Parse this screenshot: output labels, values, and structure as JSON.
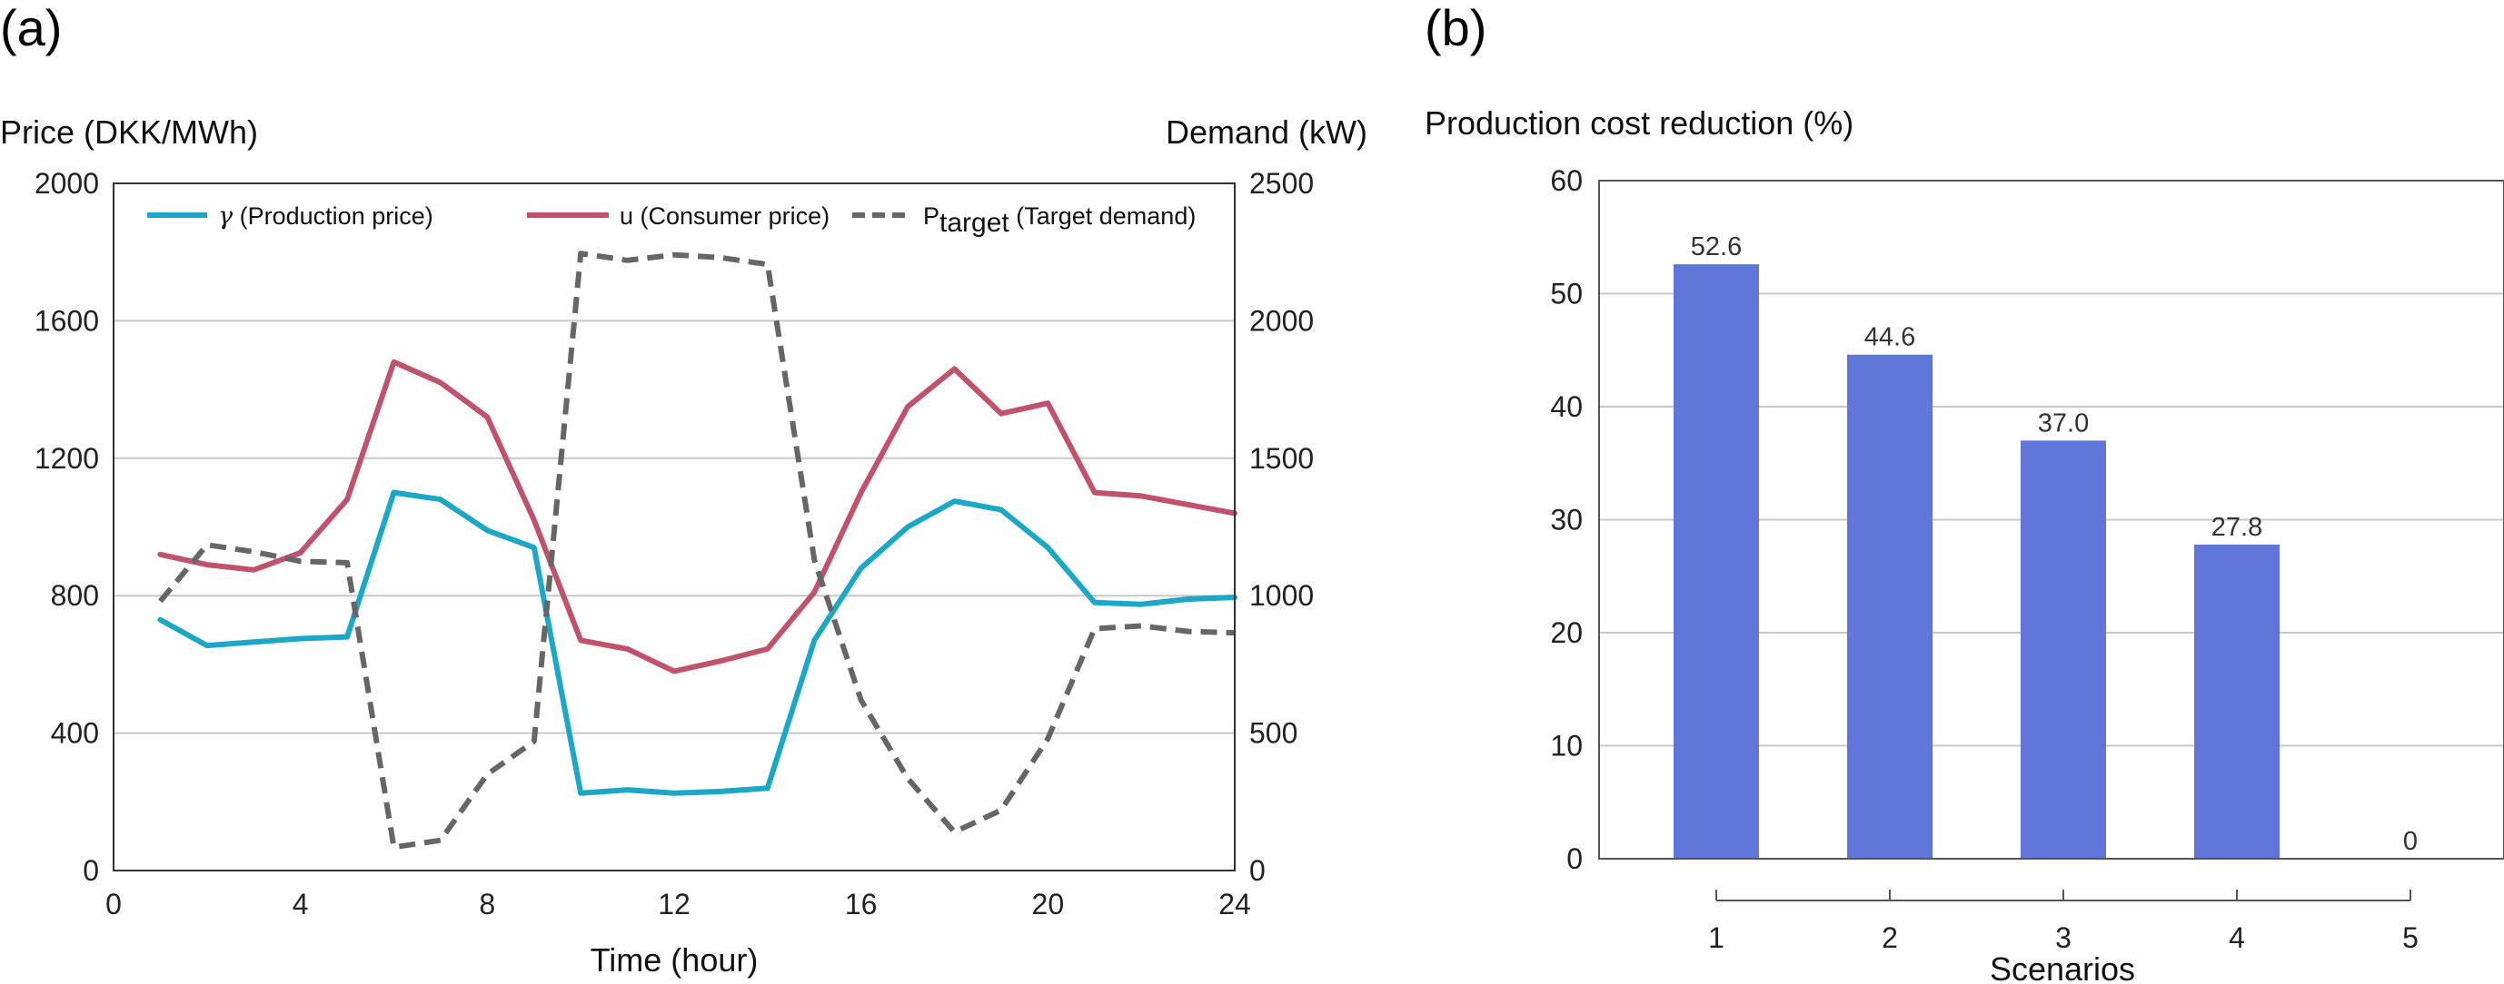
{
  "chart_data": [
    {
      "type": "line",
      "panel_label": "(a)",
      "xlabel": "Time (hour)",
      "ylabel_left": "Price (DKK/MWh)",
      "ylabel_right": "Demand (kW)",
      "xlim": [
        0,
        24
      ],
      "xticks": [
        "0",
        "4",
        "8",
        "12",
        "16",
        "20",
        "24"
      ],
      "ylim_left": [
        0,
        2000
      ],
      "yticks_left": [
        "0",
        "400",
        "800",
        "1200",
        "1600",
        "2000"
      ],
      "ylim_right": [
        0,
        2500
      ],
      "yticks_right": [
        "0",
        "500",
        "1000",
        "1500",
        "2000",
        "2500"
      ],
      "grid": "horizontal",
      "legend_position": "top",
      "x": [
        1,
        2,
        3,
        4,
        5,
        6,
        7,
        8,
        9,
        10,
        11,
        12,
        13,
        14,
        15,
        16,
        17,
        18,
        19,
        20,
        21,
        22,
        23,
        24
      ],
      "series": [
        {
          "name_symbol": "γ",
          "name_rest": " (Production price)",
          "axis": "left",
          "color": "#1ba7c6",
          "dash": "solid",
          "values": [
            730,
            655,
            665,
            675,
            680,
            1100,
            1080,
            990,
            940,
            225,
            235,
            225,
            230,
            240,
            670,
            880,
            1000,
            1075,
            1050,
            940,
            780,
            775,
            790,
            795
          ]
        },
        {
          "name_symbol": "u",
          "name_rest": " (Consumer price)",
          "axis": "left",
          "color": "#c0526b",
          "dash": "solid",
          "values": [
            920,
            890,
            875,
            925,
            1080,
            1480,
            1420,
            1320,
            1020,
            670,
            645,
            580,
            610,
            645,
            810,
            1100,
            1350,
            1460,
            1330,
            1360,
            1100,
            1090,
            1065,
            1040
          ]
        },
        {
          "name_main": "P",
          "name_sub": "target",
          "name_rest": " (Target demand)",
          "axis": "right",
          "color": "#666666",
          "dash": "dashed",
          "values": [
            980,
            1185,
            1160,
            1125,
            1120,
            85,
            110,
            350,
            470,
            2245,
            2220,
            2240,
            2230,
            2205,
            1130,
            620,
            335,
            140,
            220,
            480,
            880,
            890,
            870,
            865
          ]
        }
      ]
    },
    {
      "type": "bar",
      "panel_label": "(b)",
      "title": "Production cost reduction (%)",
      "xlabel": "Scenarios",
      "ylabel": "",
      "categories": [
        "1",
        "2",
        "3",
        "4",
        "5"
      ],
      "values": [
        52.6,
        44.6,
        37.0,
        27.8,
        0
      ],
      "value_labels": [
        "52.6",
        "44.6",
        "37.0",
        "27.8",
        "0"
      ],
      "ylim": [
        0,
        60
      ],
      "yticks": [
        "0",
        "10",
        "20",
        "30",
        "40",
        "50",
        "60"
      ],
      "grid": "horizontal",
      "bar_color": "#6077d9"
    }
  ]
}
